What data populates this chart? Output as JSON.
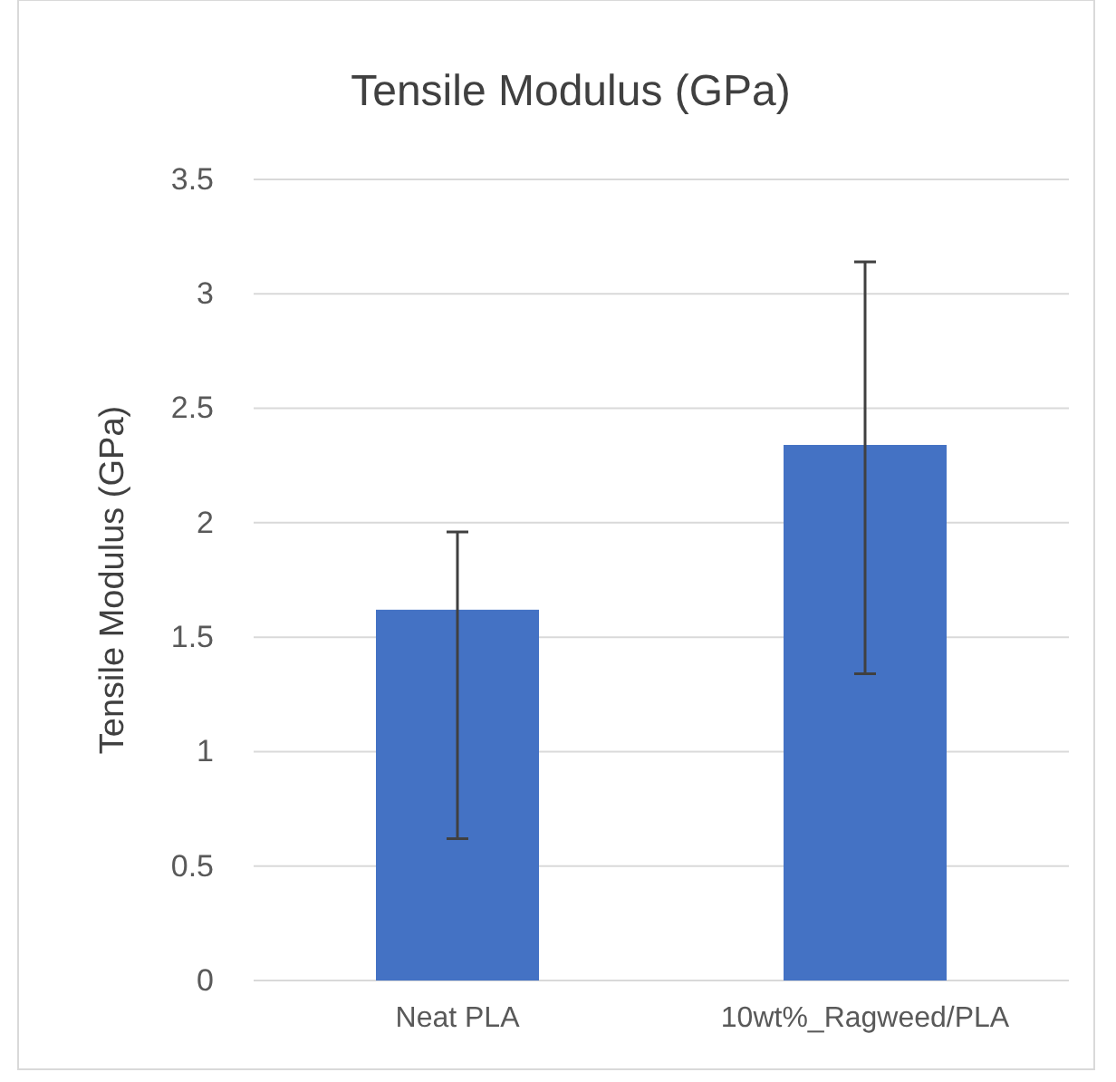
{
  "chart_data": {
    "type": "bar",
    "title": "Tensile Modulus (GPa)",
    "ylabel": "Tensile Modulus (GPa)",
    "categories": [
      "Neat PLA",
      "10wt%_Ragweed/PLA"
    ],
    "values": [
      1.62,
      2.34
    ],
    "errors": [
      [
        0.62,
        1.96
      ],
      [
        1.34,
        3.14
      ]
    ],
    "color": "#4472c4",
    "ylim": [
      0,
      3.5
    ],
    "yticks": [
      0,
      0.5,
      1,
      1.5,
      2,
      2.5,
      3,
      3.5
    ],
    "grid": "y"
  }
}
